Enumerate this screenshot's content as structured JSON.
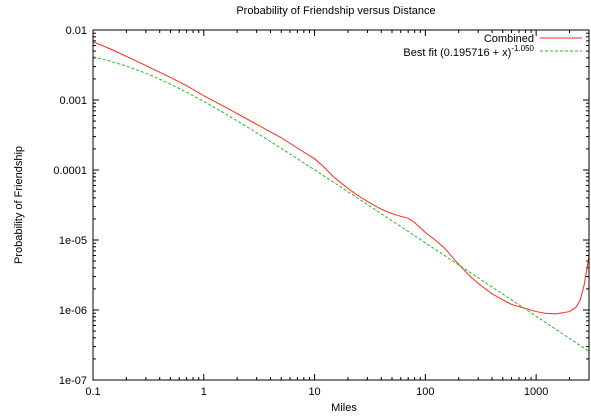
{
  "chart_data": {
    "type": "line",
    "title": "Probability of Friendship versus Distance",
    "xlabel": "Miles",
    "ylabel": "Probability of Friendship",
    "xscale": "log",
    "yscale": "log",
    "xlim": [
      0.1,
      3000
    ],
    "ylim": [
      1e-07,
      0.01
    ],
    "grid": false,
    "legend_position": "top-right",
    "xticks": [
      {
        "value": 0.1,
        "label": "0.1"
      },
      {
        "value": 1,
        "label": "1"
      },
      {
        "value": 10,
        "label": "10"
      },
      {
        "value": 100,
        "label": "100"
      },
      {
        "value": 1000,
        "label": "1000"
      }
    ],
    "yticks": [
      {
        "value": 1e-07,
        "label": "1e-07"
      },
      {
        "value": 1e-06,
        "label": "1e-06"
      },
      {
        "value": 1e-05,
        "label": "1e-05"
      },
      {
        "value": 0.0001,
        "label": "0.0001"
      },
      {
        "value": 0.001,
        "label": "0.001"
      },
      {
        "value": 0.01,
        "label": "0.01"
      }
    ],
    "series": [
      {
        "name": "Combined",
        "color": "#ff2a1a",
        "style": "solid",
        "points": [
          [
            0.1,
            0.0068
          ],
          [
            0.15,
            0.0052
          ],
          [
            0.2,
            0.0042
          ],
          [
            0.3,
            0.0031
          ],
          [
            0.5,
            0.0021
          ],
          [
            0.7,
            0.0016
          ],
          [
            1,
            0.00115
          ],
          [
            1.5,
            0.00082
          ],
          [
            2,
            0.00064
          ],
          [
            3,
            0.00045
          ],
          [
            4,
            0.00035
          ],
          [
            5,
            0.00029
          ],
          [
            6,
            0.00024
          ],
          [
            8,
            0.00018
          ],
          [
            10,
            0.000145
          ],
          [
            12,
            0.000112
          ],
          [
            15,
            7.85e-05
          ],
          [
            20,
            5.45e-05
          ],
          [
            25,
            4.25e-05
          ],
          [
            30,
            3.55e-05
          ],
          [
            40,
            2.75e-05
          ],
          [
            50,
            2.38e-05
          ],
          [
            60,
            2.18e-05
          ],
          [
            70,
            2.05e-05
          ],
          [
            80,
            1.78e-05
          ],
          [
            100,
            1.28e-05
          ],
          [
            120,
            1.03e-05
          ],
          [
            150,
            7.6e-06
          ],
          [
            180,
            5.4e-06
          ],
          [
            200,
            4.5e-06
          ],
          [
            250,
            3.1e-06
          ],
          [
            300,
            2.4e-06
          ],
          [
            400,
            1.7e-06
          ],
          [
            500,
            1.4e-06
          ],
          [
            600,
            1.2e-06
          ],
          [
            800,
            1.05e-06
          ],
          [
            1000,
            9.5e-07
          ],
          [
            1200,
            9e-07
          ],
          [
            1500,
            8.8e-07
          ],
          [
            1800,
            9.2e-07
          ],
          [
            2000,
            9.5e-07
          ],
          [
            2300,
            1.1e-06
          ],
          [
            2500,
            1.4e-06
          ],
          [
            2700,
            2.2e-06
          ],
          [
            2900,
            4.2e-06
          ],
          [
            3000,
            6e-06
          ]
        ]
      },
      {
        "name": "Best fit (0.195716 + x)",
        "name_superscript": "-1.050",
        "color": "#22bb22",
        "style": "dashed",
        "fit": {
          "a": 0.195716,
          "k": 0.00115,
          "exponent": -1.05
        },
        "points": []
      }
    ]
  }
}
